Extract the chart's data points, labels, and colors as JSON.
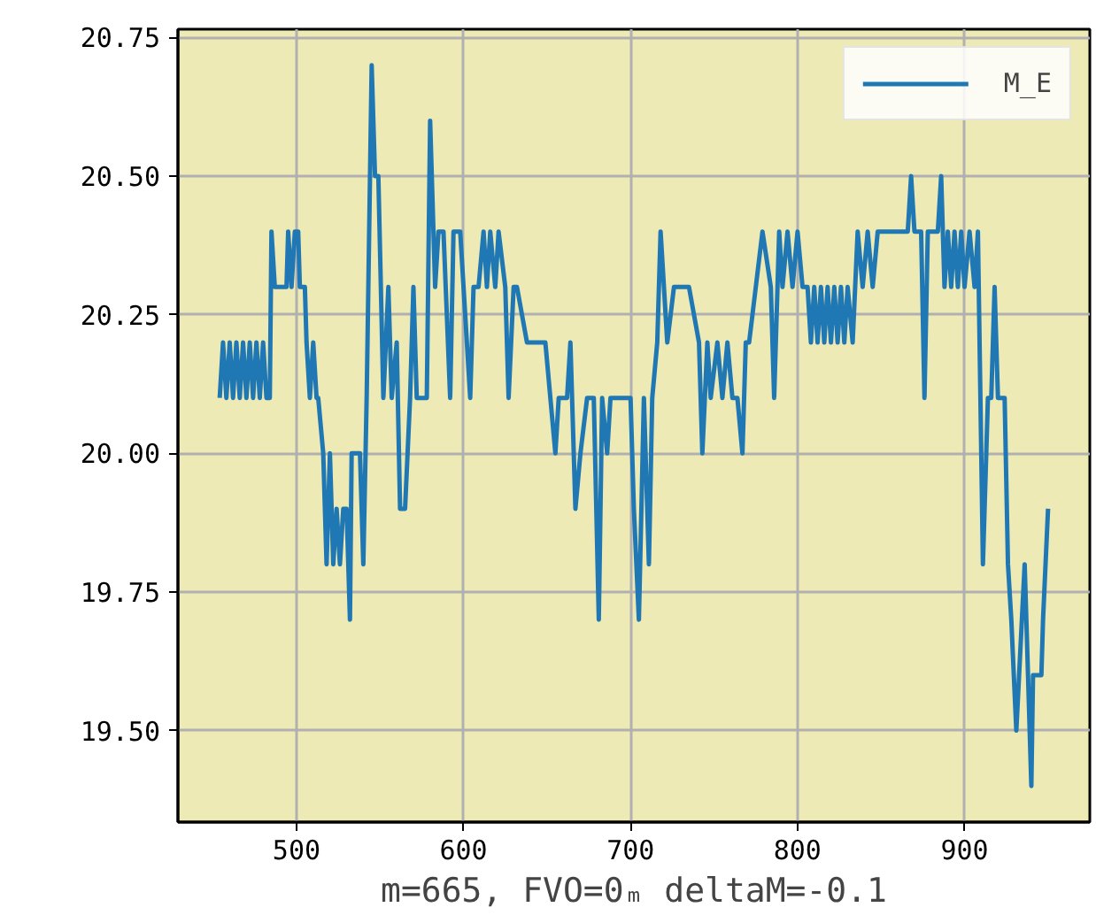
{
  "chart_data": {
    "type": "line",
    "xlabel": "m=665, FVO=0ₘ deltaM=-0.1",
    "xlim": [
      429,
      975
    ],
    "ylim": [
      19.335,
      20.765
    ],
    "xticks": [
      500,
      600,
      700,
      800,
      900
    ],
    "yticks": [
      {
        "value": 19.5,
        "label": "19.50"
      },
      {
        "value": 19.75,
        "label": "19.75"
      },
      {
        "value": 20.0,
        "label": "20.00"
      },
      {
        "value": 20.25,
        "label": "20.25"
      },
      {
        "value": 20.5,
        "label": "20.50"
      },
      {
        "value": 20.75,
        "label": "20.75"
      }
    ],
    "grid": true,
    "legend": "top right",
    "series": [
      {
        "name": "M_E",
        "color": "#1f77b4",
        "x": [
          454,
          456,
          458,
          460,
          462,
          464,
          466,
          468,
          470,
          472,
          474,
          476,
          478,
          480,
          482,
          484,
          485,
          487,
          494,
          495,
          497,
          499,
          501,
          502,
          505,
          506,
          508,
          510,
          512,
          513,
          516,
          518,
          520,
          522,
          524,
          526,
          528,
          530,
          532,
          533,
          538,
          540,
          542,
          545,
          547,
          549,
          552,
          555,
          557,
          560,
          562,
          565,
          568,
          570,
          572,
          578,
          580,
          583,
          585,
          588,
          592,
          594,
          598,
          604,
          606,
          609,
          612,
          614,
          616,
          619,
          621,
          625,
          627,
          630,
          632,
          638,
          649,
          652,
          655,
          657,
          662,
          664,
          667,
          670,
          674,
          678,
          681,
          683,
          686,
          688,
          700,
          702,
          705,
          708,
          711,
          713,
          716,
          718,
          722,
          726,
          735,
          741,
          743,
          746,
          748,
          752,
          755,
          758,
          761,
          764,
          767,
          769,
          771,
          779,
          784,
          786,
          789,
          791,
          794,
          797,
          800,
          803,
          806,
          808,
          810,
          812,
          814,
          816,
          818,
          820,
          822,
          824,
          826,
          828,
          830,
          833,
          836,
          839,
          842,
          845,
          848,
          866,
          868,
          870,
          874,
          876,
          878,
          884,
          886,
          888,
          890,
          892,
          894,
          896,
          898,
          900,
          903,
          906,
          908,
          911,
          914,
          916,
          918,
          920,
          924,
          926,
          928,
          931,
          936,
          940,
          941,
          946,
          947,
          950
        ],
        "values": [
          20.1,
          20.2,
          20.1,
          20.2,
          20.1,
          20.2,
          20.1,
          20.2,
          20.1,
          20.2,
          20.1,
          20.2,
          20.1,
          20.2,
          20.1,
          20.1,
          20.4,
          20.3,
          20.3,
          20.4,
          20.3,
          20.4,
          20.4,
          20.3,
          20.3,
          20.2,
          20.1,
          20.2,
          20.1,
          20.1,
          20.0,
          19.8,
          20.0,
          19.8,
          19.9,
          19.8,
          19.9,
          19.9,
          19.7,
          20.0,
          20.0,
          19.8,
          20.1,
          20.7,
          20.5,
          20.5,
          20.1,
          20.3,
          20.1,
          20.2,
          19.9,
          19.9,
          20.1,
          20.3,
          20.1,
          20.1,
          20.6,
          20.3,
          20.4,
          20.4,
          20.1,
          20.4,
          20.4,
          20.1,
          20.3,
          20.3,
          20.4,
          20.3,
          20.4,
          20.3,
          20.4,
          20.3,
          20.1,
          20.3,
          20.3,
          20.2,
          20.2,
          20.1,
          20.0,
          20.1,
          20.1,
          20.2,
          19.9,
          20.0,
          20.1,
          20.1,
          19.7,
          20.1,
          20.0,
          20.1,
          20.1,
          19.9,
          19.7,
          20.1,
          19.8,
          20.1,
          20.2,
          20.4,
          20.2,
          20.3,
          20.3,
          20.2,
          20.0,
          20.2,
          20.1,
          20.2,
          20.1,
          20.2,
          20.1,
          20.1,
          20.0,
          20.2,
          20.2,
          20.4,
          20.3,
          20.1,
          20.4,
          20.3,
          20.4,
          20.3,
          20.4,
          20.3,
          20.3,
          20.2,
          20.3,
          20.2,
          20.3,
          20.2,
          20.3,
          20.2,
          20.3,
          20.2,
          20.3,
          20.2,
          20.3,
          20.2,
          20.4,
          20.3,
          20.4,
          20.3,
          20.4,
          20.4,
          20.5,
          20.4,
          20.4,
          20.1,
          20.4,
          20.4,
          20.5,
          20.3,
          20.4,
          20.3,
          20.4,
          20.3,
          20.4,
          20.3,
          20.4,
          20.3,
          20.4,
          19.8,
          20.1,
          20.1,
          20.3,
          20.1,
          20.1,
          19.8,
          19.7,
          19.5,
          19.8,
          19.4,
          19.6,
          19.6,
          19.7,
          19.9
        ]
      }
    ]
  }
}
